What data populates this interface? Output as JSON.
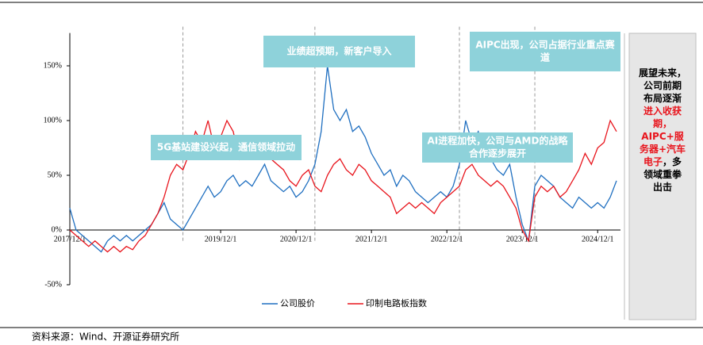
{
  "chart_data": {
    "type": "line",
    "x": [
      "2017/12/1",
      "2018/1/1",
      "2018/2/1",
      "2018/3/1",
      "2018/4/1",
      "2018/5/1",
      "2018/6/1",
      "2018/7/1",
      "2018/8/1",
      "2018/9/1",
      "2018/10/1",
      "2018/11/1",
      "2018/12/1",
      "2019/1/1",
      "2019/2/1",
      "2019/3/1",
      "2019/4/1",
      "2019/5/1",
      "2019/6/1",
      "2019/7/1",
      "2019/8/1",
      "2019/9/1",
      "2019/10/1",
      "2019/11/1",
      "2019/12/1",
      "2020/1/1",
      "2020/2/1",
      "2020/3/1",
      "2020/4/1",
      "2020/5/1",
      "2020/6/1",
      "2020/7/1",
      "2020/8/1",
      "2020/9/1",
      "2020/10/1",
      "2020/11/1",
      "2020/12/1",
      "2021/1/1",
      "2021/2/1",
      "2021/3/1",
      "2021/4/1",
      "2021/5/1",
      "2021/6/1",
      "2021/7/1",
      "2021/8/1",
      "2021/9/1",
      "2021/10/1",
      "2021/11/1",
      "2021/12/1",
      "2022/1/1",
      "2022/2/1",
      "2022/3/1",
      "2022/4/1",
      "2022/5/1",
      "2022/6/1",
      "2022/7/1",
      "2022/8/1",
      "2022/9/1",
      "2022/10/1",
      "2022/11/1",
      "2022/12/1",
      "2023/1/1",
      "2023/2/1",
      "2023/3/1",
      "2023/4/1",
      "2023/5/1",
      "2023/6/1",
      "2023/7/1",
      "2023/8/1",
      "2023/9/1",
      "2023/10/1",
      "2023/11/1",
      "2023/12/1",
      "2024/1/1",
      "2024/2/1",
      "2024/3/1",
      "2024/4/1",
      "2024/5/1",
      "2024/6/1",
      "2024/7/1",
      "2024/8/1",
      "2024/9/1",
      "2024/10/1",
      "2024/11/1",
      "2024/12/1",
      "2025/1/1",
      "2025/2/1",
      "2025/3/1"
    ],
    "series": [
      {
        "name": "公司股价",
        "color": "#1f6fc0",
        "values": [
          20,
          0,
          -5,
          -10,
          -15,
          -20,
          -10,
          -5,
          -10,
          -5,
          -10,
          -5,
          0,
          5,
          15,
          25,
          10,
          5,
          0,
          10,
          20,
          30,
          40,
          30,
          35,
          45,
          50,
          40,
          45,
          40,
          50,
          60,
          45,
          40,
          35,
          40,
          30,
          35,
          45,
          60,
          90,
          150,
          110,
          100,
          110,
          90,
          95,
          85,
          70,
          60,
          50,
          55,
          40,
          50,
          45,
          35,
          30,
          25,
          30,
          35,
          30,
          40,
          60,
          100,
          80,
          90,
          70,
          65,
          55,
          50,
          60,
          30,
          5,
          -10,
          40,
          50,
          45,
          40,
          30,
          25,
          20,
          30,
          25,
          20,
          25,
          20,
          30,
          45
        ]
      },
      {
        "name": "印制电路板指数",
        "color": "#e8141c",
        "values": [
          0,
          -5,
          -10,
          -15,
          -10,
          -15,
          -20,
          -15,
          -20,
          -15,
          -18,
          -10,
          -5,
          5,
          15,
          30,
          50,
          60,
          55,
          70,
          90,
          80,
          100,
          75,
          85,
          100,
          90,
          65,
          80,
          65,
          70,
          75,
          65,
          60,
          55,
          45,
          40,
          50,
          55,
          40,
          35,
          50,
          60,
          65,
          55,
          50,
          60,
          55,
          45,
          40,
          35,
          30,
          15,
          20,
          25,
          20,
          25,
          20,
          15,
          25,
          30,
          35,
          40,
          55,
          60,
          50,
          45,
          40,
          45,
          40,
          30,
          20,
          0,
          -10,
          30,
          40,
          35,
          40,
          30,
          35,
          45,
          55,
          70,
          60,
          75,
          80,
          100,
          90
        ]
      }
    ],
    "xlim": [
      "2017/12/1",
      "2025/3/1"
    ],
    "xticks": [
      "2017/12/1",
      "2019/12/1",
      "2020/12/1",
      "2021/12/1",
      "2022/12/1",
      "2023/12/1",
      "2024/12/1"
    ],
    "ylim": [
      -50,
      180
    ],
    "yticks": [
      {
        "value": -50,
        "label": "-50%"
      },
      {
        "value": 0,
        "label": "0%"
      },
      {
        "value": 50,
        "label": "50%"
      },
      {
        "value": 100,
        "label": "100%"
      },
      {
        "value": 150,
        "label": "150%"
      }
    ],
    "annotations": [
      {
        "x": "2019/6/1",
        "lines": [
          "5G基站建设兴起，通信领域拉动"
        ]
      },
      {
        "x": "2021/3/1",
        "lines": [
          "业绩超预期，新客户导入"
        ]
      },
      {
        "x": "2023/2/1",
        "lines": [
          "AI进程加快，公司与AMD的战略",
          "合作逐步展开"
        ]
      },
      {
        "x": "2024/2/1",
        "lines": [
          "AIPC出现，公司占据行业重点赛",
          "道"
        ]
      }
    ],
    "note": [
      [
        {
          "text": "展望未来，",
          "color": "#000000"
        }
      ],
      [
        {
          "text": "公司前期",
          "color": "#000000"
        }
      ],
      [
        {
          "text": "布局逐渐",
          "color": "#000000"
        }
      ],
      [
        {
          "text": "进入收获",
          "color": "#e8141c"
        }
      ],
      [
        {
          "text": "期，",
          "color": "#e8141c"
        }
      ],
      [
        {
          "text": "AIPC+服",
          "color": "#e8141c"
        }
      ],
      [
        {
          "text": "务器+汽车",
          "color": "#e8141c"
        }
      ],
      [
        {
          "text": "电子",
          "color": "#e8141c"
        },
        {
          "text": "，多",
          "color": "#000000"
        }
      ],
      [
        {
          "text": "领域重拳",
          "color": "#000000"
        }
      ],
      [
        {
          "text": "出击",
          "color": "#000000"
        }
      ]
    ],
    "source": "资料来源：Wind、开源证券研究所"
  }
}
